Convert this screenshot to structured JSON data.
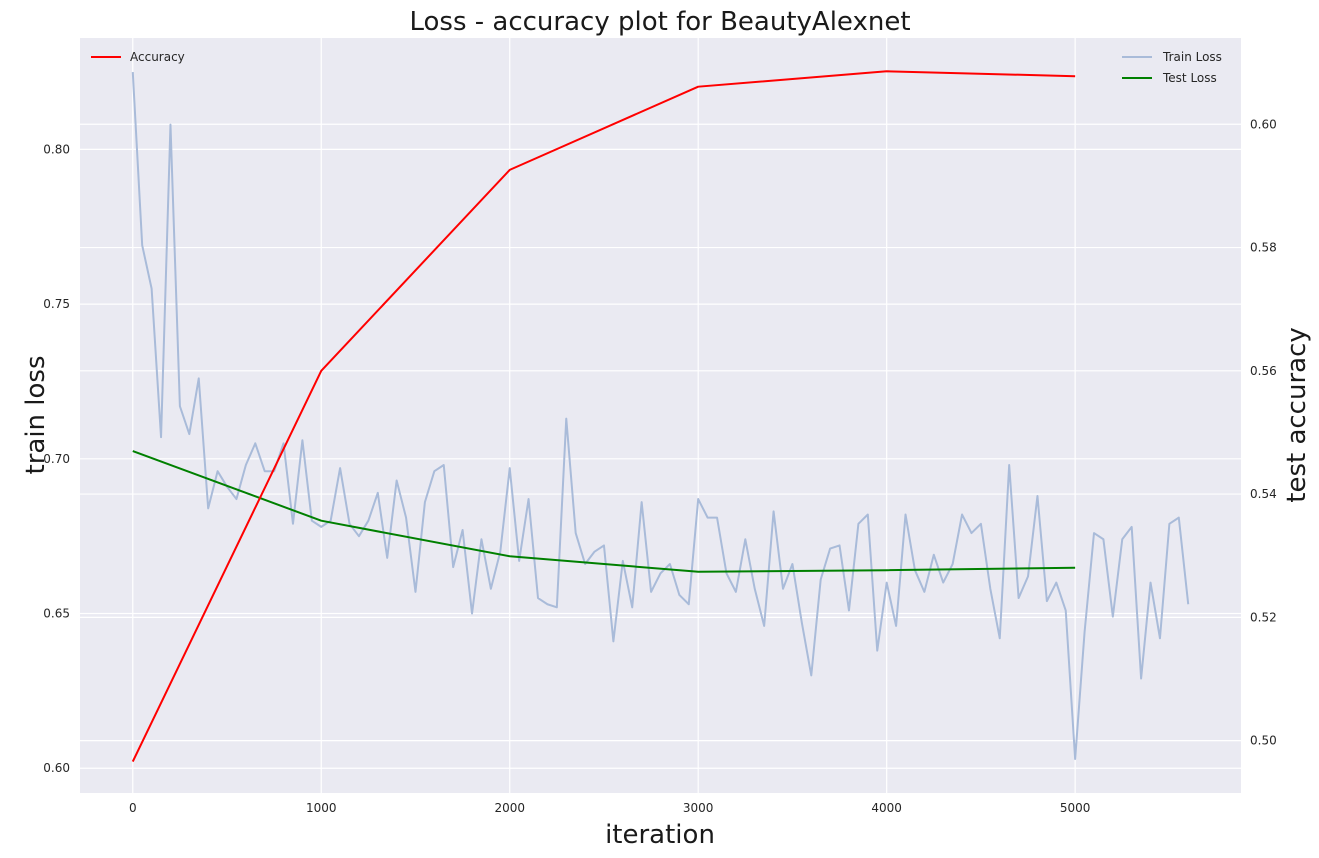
{
  "chart_data": {
    "type": "line",
    "title": "Loss - accuracy plot for BeautyAlexnet",
    "xlabel": "iteration",
    "ylabel_left": "train loss",
    "ylabel_right": "test accuracy",
    "xlim": [
      -280,
      5880
    ],
    "ylim_left": [
      0.592,
      0.836
    ],
    "ylim_right": [
      0.4915,
      0.614
    ],
    "xticks": [
      0,
      1000,
      2000,
      3000,
      4000,
      5000
    ],
    "xtick_labels": [
      "0",
      "1000",
      "2000",
      "3000",
      "4000",
      "5000"
    ],
    "yticks_left": [
      0.6,
      0.65,
      0.7,
      0.75,
      0.8
    ],
    "ytick_labels_left": [
      "0.60",
      "0.65",
      "0.70",
      "0.75",
      "0.80"
    ],
    "yticks_right": [
      0.5,
      0.52,
      0.54,
      0.56,
      0.58,
      0.6
    ],
    "ytick_labels_right": [
      "0.50",
      "0.52",
      "0.54",
      "0.56",
      "0.58",
      "0.60"
    ],
    "grid": true,
    "legend_left": {
      "placement": "top-left",
      "entries": [
        {
          "name": "Accuracy",
          "color": "#ff0000"
        }
      ]
    },
    "legend_right": {
      "placement": "top-right",
      "entries": [
        {
          "name": "Train Loss",
          "color": "#a9bbd9"
        },
        {
          "name": "Test Loss",
          "color": "#008000"
        }
      ]
    },
    "series": [
      {
        "name": "Train Loss",
        "axis": "left",
        "color": "#a9bbd9",
        "x": [
          0,
          50,
          100,
          150,
          200,
          250,
          300,
          350,
          400,
          450,
          500,
          550,
          600,
          650,
          700,
          750,
          800,
          850,
          900,
          950,
          1000,
          1050,
          1100,
          1150,
          1200,
          1250,
          1300,
          1350,
          1400,
          1450,
          1500,
          1550,
          1600,
          1650,
          1700,
          1750,
          1800,
          1850,
          1900,
          1950,
          2000,
          2050,
          2100,
          2150,
          2200,
          2250,
          2300,
          2350,
          2400,
          2450,
          2500,
          2550,
          2600,
          2650,
          2700,
          2750,
          2800,
          2850,
          2900,
          2950,
          3000,
          3050,
          3100,
          3150,
          3200,
          3250,
          3300,
          3350,
          3400,
          3450,
          3500,
          3550,
          3600,
          3650,
          3700,
          3750,
          3800,
          3850,
          3900,
          3950,
          4000,
          4050,
          4100,
          4150,
          4200,
          4250,
          4300,
          4350,
          4400,
          4450,
          4500,
          4550,
          4600,
          4650,
          4700,
          4750,
          4800,
          4850,
          4900,
          4950,
          5000,
          5050,
          5100,
          5150,
          5200,
          5250,
          5300,
          5350,
          5400,
          5450,
          5500,
          5550,
          5600
        ],
        "values": [
          0.825,
          0.769,
          0.755,
          0.707,
          0.808,
          0.717,
          0.708,
          0.726,
          0.684,
          0.696,
          0.691,
          0.687,
          0.698,
          0.705,
          0.696,
          0.696,
          0.705,
          0.679,
          0.706,
          0.68,
          0.678,
          0.68,
          0.697,
          0.679,
          0.675,
          0.68,
          0.689,
          0.668,
          0.693,
          0.681,
          0.657,
          0.686,
          0.696,
          0.698,
          0.665,
          0.677,
          0.65,
          0.674,
          0.658,
          0.67,
          0.697,
          0.667,
          0.687,
          0.655,
          0.653,
          0.652,
          0.713,
          0.676,
          0.666,
          0.67,
          0.672,
          0.641,
          0.667,
          0.652,
          0.686,
          0.657,
          0.663,
          0.666,
          0.656,
          0.653,
          0.687,
          0.681,
          0.681,
          0.663,
          0.657,
          0.674,
          0.658,
          0.646,
          0.683,
          0.658,
          0.666,
          0.647,
          0.63,
          0.661,
          0.671,
          0.672,
          0.651,
          0.679,
          0.682,
          0.638,
          0.66,
          0.646,
          0.682,
          0.664,
          0.657,
          0.669,
          0.66,
          0.666,
          0.682,
          0.676,
          0.679,
          0.658,
          0.642,
          0.698,
          0.655,
          0.662,
          0.688,
          0.654,
          0.66,
          0.651,
          0.603,
          0.644,
          0.676,
          0.674,
          0.649,
          0.674,
          0.678,
          0.629,
          0.66,
          0.642,
          0.679,
          0.681,
          0.653
        ]
      },
      {
        "name": "Test Loss",
        "axis": "left",
        "color": "#008000",
        "x": [
          0,
          1000,
          2000,
          3000,
          4000,
          5000
        ],
        "values": [
          0.7025,
          0.68,
          0.6685,
          0.6635,
          0.664,
          0.6648
        ]
      },
      {
        "name": "Accuracy",
        "axis": "right",
        "color": "#ff0000",
        "x": [
          0,
          1000,
          2000,
          3000,
          4000,
          5000
        ],
        "values": [
          0.4966,
          0.56,
          0.5926,
          0.6061,
          0.6086,
          0.6078
        ]
      }
    ]
  }
}
